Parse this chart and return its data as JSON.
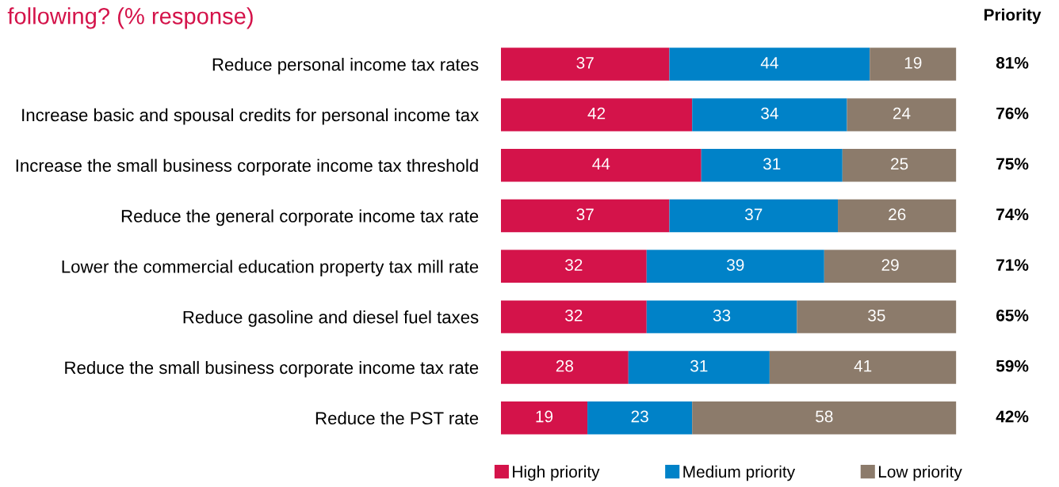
{
  "chart_data": {
    "type": "bar",
    "orientation": "horizontal",
    "stacked": true,
    "title": "following? (% response)",
    "categories": [
      "Reduce personal income tax rates",
      "Increase basic and spousal credits for personal income tax",
      "Increase the small business corporate income tax threshold",
      "Reduce the general corporate income tax rate",
      "Lower the commercial education property tax mill rate",
      "Reduce gasoline and diesel fuel taxes",
      "Reduce the small business corporate income tax rate",
      "Reduce the PST rate"
    ],
    "series": [
      {
        "name": "High priority",
        "color": "#d4134a",
        "values": [
          37,
          42,
          44,
          37,
          32,
          32,
          28,
          19
        ]
      },
      {
        "name": "Medium priority",
        "color": "#0082c8",
        "values": [
          44,
          34,
          31,
          37,
          39,
          33,
          31,
          23
        ]
      },
      {
        "name": "Low priority",
        "color": "#8c7b6b",
        "values": [
          19,
          24,
          25,
          26,
          29,
          35,
          41,
          58
        ]
      }
    ],
    "data_labels": true,
    "legend": "bottom",
    "grid": false,
    "annotations": [
      "Priority",
      "81%",
      "76%",
      "75%",
      "74%",
      "71%",
      "65%",
      "59%",
      "42%"
    ]
  }
}
